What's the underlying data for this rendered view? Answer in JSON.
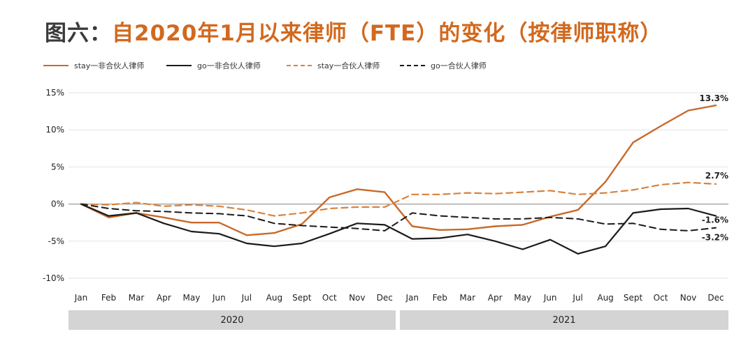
{
  "title": {
    "prefix": "图六：",
    "main": "自2020年1月以来律师（FTE）的变化（按律师职称）"
  },
  "legend": [
    {
      "label": "stay一非合伙人律师",
      "color": "#c8692a",
      "dashed": false
    },
    {
      "label": "go一非合伙人律师",
      "color": "#1a1a1a",
      "dashed": false
    },
    {
      "label": "stay一合伙人律师",
      "color": "#d9823c",
      "dashed": true
    },
    {
      "label": "go一合伙人律师",
      "color": "#1a1a1a",
      "dashed": true
    }
  ],
  "chart_data": {
    "type": "line",
    "title": "自2020年1月以来律师（FTE）的变化（按律师职称）",
    "xlabel": "",
    "ylabel": "",
    "categories": [
      "Jan",
      "Feb",
      "Mar",
      "Apr",
      "May",
      "Jun",
      "Jul",
      "Aug",
      "Sept",
      "Oct",
      "Nov",
      "Dec",
      "Jan",
      "Feb",
      "Mar",
      "Apr",
      "May",
      "Jun",
      "Jul",
      "Aug",
      "Sept",
      "Oct",
      "Nov",
      "Dec"
    ],
    "year_groups": [
      {
        "label": "2020",
        "start": 0,
        "end": 11
      },
      {
        "label": "2021",
        "start": 12,
        "end": 23
      }
    ],
    "ylim": [
      -10,
      15
    ],
    "yticks": [
      -10,
      -5,
      0,
      5,
      10,
      15
    ],
    "ytick_labels": [
      "-10%",
      "-5%",
      "0%",
      "5%",
      "10%",
      "15%"
    ],
    "series": [
      {
        "name": "stay一非合伙人律师",
        "color": "#c8692a",
        "dashed": false,
        "width": 2.4,
        "values": [
          0,
          -1.8,
          -1.2,
          -1.8,
          -2.5,
          -2.5,
          -4.2,
          -3.9,
          -2.7,
          0.9,
          2.0,
          1.6,
          -3.0,
          -3.5,
          -3.4,
          -3.0,
          -2.8,
          -1.7,
          -0.8,
          3.0,
          8.3,
          10.5,
          12.6,
          13.3
        ],
        "end_label": "13.3%"
      },
      {
        "name": "go一非合伙人律师",
        "color": "#1a1a1a",
        "dashed": false,
        "width": 2.2,
        "values": [
          0,
          -1.6,
          -1.2,
          -2.6,
          -3.7,
          -4.0,
          -5.3,
          -5.7,
          -5.3,
          -4.0,
          -2.6,
          -2.8,
          -4.7,
          -4.6,
          -4.1,
          -5.0,
          -6.1,
          -4.8,
          -6.7,
          -5.7,
          -1.2,
          -0.7,
          -0.6,
          -1.6
        ],
        "end_label": "-1.6%"
      },
      {
        "name": "stay一合伙人律师",
        "color": "#d9823c",
        "dashed": true,
        "width": 2.2,
        "values": [
          0,
          -0.1,
          0.2,
          -0.3,
          -0.1,
          -0.3,
          -0.8,
          -1.6,
          -1.2,
          -0.6,
          -0.4,
          -0.4,
          1.3,
          1.3,
          1.5,
          1.4,
          1.6,
          1.8,
          1.3,
          1.5,
          1.9,
          2.6,
          2.9,
          2.7
        ],
        "end_label": "2.7%"
      },
      {
        "name": "go一合伙人律师",
        "color": "#1a1a1a",
        "dashed": true,
        "width": 2.0,
        "values": [
          0,
          -0.6,
          -0.9,
          -1.0,
          -1.2,
          -1.3,
          -1.6,
          -2.6,
          -2.9,
          -3.1,
          -3.3,
          -3.6,
          -1.2,
          -1.6,
          -1.8,
          -2.0,
          -2.0,
          -1.8,
          -2.0,
          -2.7,
          -2.6,
          -3.4,
          -3.6,
          -3.2
        ],
        "end_label": "-3.2%"
      }
    ]
  }
}
